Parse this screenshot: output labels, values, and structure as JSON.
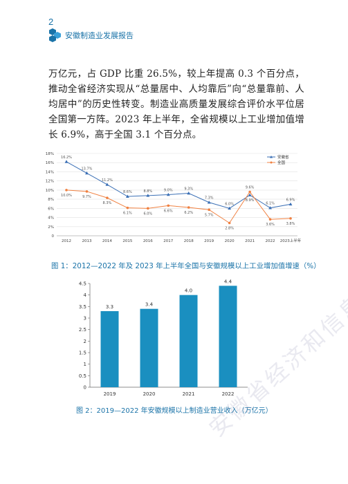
{
  "page": {
    "number": "2",
    "header_title": "安徽制造业发展报告",
    "paragraph": "万亿元，占 GDP 比重 26.5%，较上年提高 0.3 个百分点，推动全省经济实现从“总量居中、人均靠后”向“总量靠前、人均居中”的历史性转变。制造业高质量发展综合评价水平位居全国第一方阵。2023 年上半年，全省规模以上工业增加值增长 6.9%，高于全国 3.1 个百分点。",
    "watermark": "安徽省经济和信息化厅",
    "colors": {
      "accent": "#1a73a8",
      "anhui_line": "#3a6fb5",
      "national_line": "#f08040",
      "bar": "#1a8fc0"
    }
  },
  "chart_data": [
    {
      "type": "line",
      "title": "",
      "categories": [
        "2012",
        "2013",
        "2014",
        "2015",
        "2016",
        "2017",
        "2018",
        "2019",
        "2020",
        "2021",
        "2022",
        "2023上半年"
      ],
      "series": [
        {
          "name": "安徽省",
          "values": [
            16.2,
            13.7,
            11.2,
            8.6,
            8.8,
            9.0,
            9.3,
            7.3,
            6.0,
            8.9,
            6.1,
            6.9
          ],
          "labels": [
            "16.2%",
            "13.7%",
            "11.2%",
            "8.6%",
            "8.8%",
            "9.0%",
            "9.3%",
            "7.3%",
            "6.0%",
            "8.9%",
            "6.1%",
            "6.9%"
          ]
        },
        {
          "name": "全国",
          "values": [
            10.0,
            9.7,
            8.3,
            6.1,
            6.0,
            6.6,
            6.2,
            5.7,
            2.8,
            9.6,
            3.6,
            3.8
          ],
          "labels": [
            "10.0%",
            "9.7%",
            "8.3%",
            "6.1%",
            "6.0%",
            "6.6%",
            "6.2%",
            "5.7%",
            "2.8%",
            "9.6%",
            "3.6%",
            "3.8%"
          ]
        }
      ],
      "yticks": [
        "0",
        "2%",
        "4%",
        "6%",
        "8%",
        "10%",
        "12%",
        "14%",
        "16%",
        "18%"
      ],
      "ylim": [
        0,
        18
      ],
      "legend": "top-right",
      "caption": "图 1：2012—2022 年及 2023 年上半年全国与安徽规模以上工业增加值增速（%）"
    },
    {
      "type": "bar",
      "title": "",
      "categories": [
        "2019",
        "2020",
        "2021",
        "2022"
      ],
      "values": [
        3.3,
        3.4,
        4.0,
        4.4
      ],
      "labels": [
        "3.3",
        "3.4",
        "4.0",
        "4.4"
      ],
      "yticks": [
        "0",
        "0.5",
        "1",
        "1.5",
        "2",
        "2.5",
        "3",
        "3.5",
        "4",
        "4.5"
      ],
      "ylim": [
        0,
        4.5
      ],
      "caption": "图 2：2019—2022 年安徽规模以上制造业营业收入（万亿元）"
    }
  ]
}
